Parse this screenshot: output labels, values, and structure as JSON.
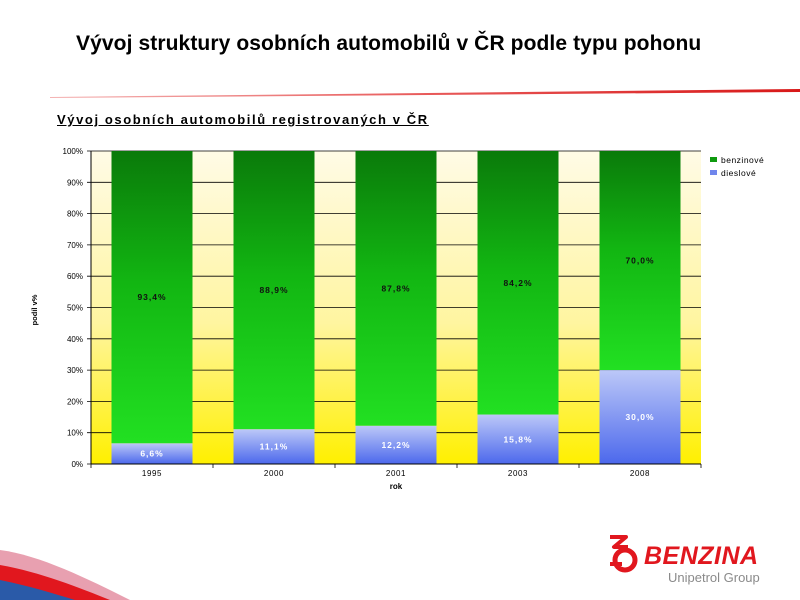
{
  "slide": {
    "title": "Vývoj struktury osobních automobilů v ČR podle typu pohonu",
    "chart_heading": "Vývoj osobních automobilů registrovaných v ČR"
  },
  "logo": {
    "name": "BENZINA",
    "subtitle": "Unipetrol Group"
  },
  "colors": {
    "benzinove": "#11a811",
    "dieslove": "#6f86ee",
    "brand_red": "#e1171e"
  },
  "chart_data": {
    "type": "bar",
    "stacked": true,
    "categories": [
      "1995",
      "2000",
      "2001",
      "2003",
      "2008"
    ],
    "series": [
      {
        "name": "dieslové",
        "values": [
          6.6,
          11.1,
          12.2,
          15.8,
          30.0
        ],
        "labels": [
          "6,6%",
          "11,1%",
          "12,2%",
          "15,8%",
          "30,0%"
        ]
      },
      {
        "name": "benzinové",
        "values": [
          93.4,
          88.9,
          87.8,
          84.2,
          70.0
        ],
        "labels": [
          "93,4%",
          "88,9%",
          "87,8%",
          "84,2%",
          "70,0%"
        ]
      }
    ],
    "yticks": [
      "0%",
      "10%",
      "20%",
      "30%",
      "40%",
      "50%",
      "60%",
      "70%",
      "80%",
      "90%",
      "100%"
    ],
    "ylim": [
      0,
      100
    ],
    "xlabel": "rok",
    "ylabel": "podíl v%",
    "legend": [
      "benzinové",
      "dieslové"
    ],
    "legend_position": "top-right",
    "grid": true
  }
}
